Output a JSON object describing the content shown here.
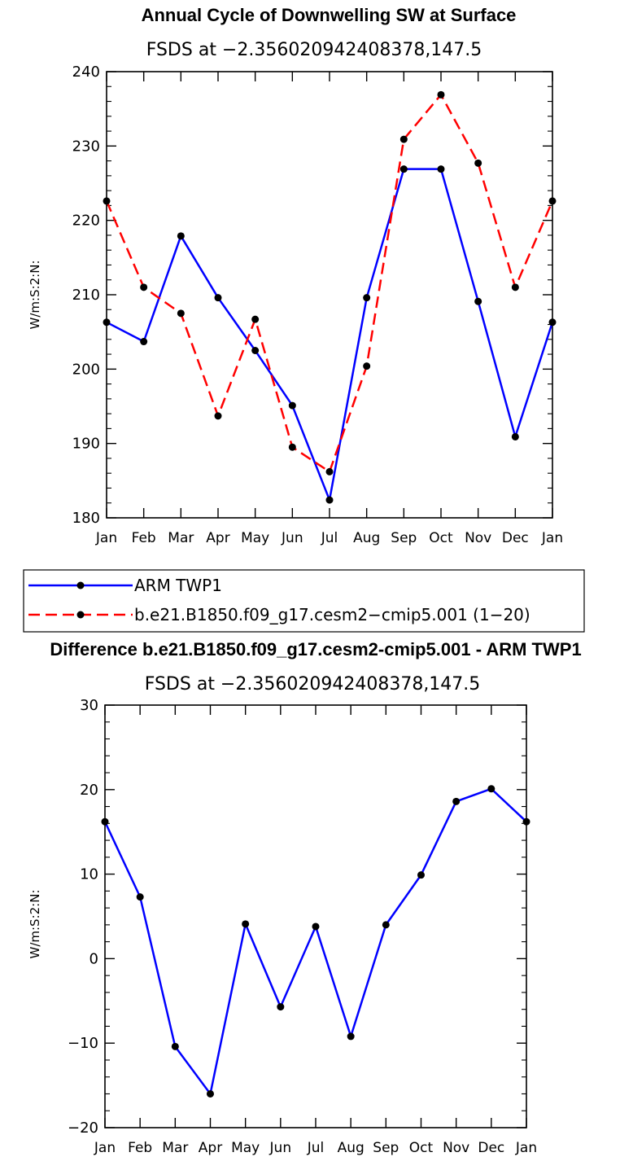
{
  "chart_data": [
    {
      "type": "line",
      "title": "Annual Cycle of Downwelling SW at Surface",
      "subtitle": "FSDS at −2.356020942408378,147.5",
      "ylabel": "W/m:S:2:N:",
      "xlabel": "",
      "categories": [
        "Jan",
        "Feb",
        "Mar",
        "Apr",
        "May",
        "Jun",
        "Jul",
        "Aug",
        "Sep",
        "Oct",
        "Nov",
        "Dec",
        "Jan"
      ],
      "ylim": [
        180,
        240
      ],
      "yticks": [
        "180",
        "190",
        "200",
        "210",
        "220",
        "230",
        "240"
      ],
      "series": [
        {
          "name": "ARM TWP1",
          "color": "#0000ff",
          "style": "solid",
          "values": [
            206.3,
            203.7,
            217.9,
            209.6,
            202.5,
            195.1,
            182.4,
            209.6,
            226.9,
            226.9,
            209.1,
            190.9,
            206.3
          ]
        },
        {
          "name": "b.e21.B1850.f09_g17.cesm2−cmip5.001 (1−20)",
          "color": "#ff0000",
          "style": "dashed",
          "values": [
            222.6,
            211.0,
            207.5,
            193.7,
            206.7,
            189.5,
            186.2,
            200.4,
            230.9,
            236.9,
            227.7,
            211.0,
            222.6
          ]
        }
      ],
      "legend": [
        "ARM TWP1",
        "b.e21.B1850.f09_g17.cesm2−cmip5.001 (1−20)"
      ]
    },
    {
      "type": "line",
      "title": "Difference b.e21.B1850.f09_g17.cesm2-cmip5.001 - ARM TWP1",
      "subtitle": "FSDS at −2.356020942408378,147.5",
      "ylabel": "W/m:S:2:N:",
      "xlabel": "",
      "categories": [
        "Jan",
        "Feb",
        "Mar",
        "Apr",
        "May",
        "Jun",
        "Jul",
        "Aug",
        "Sep",
        "Oct",
        "Nov",
        "Dec",
        "Jan"
      ],
      "ylim": [
        -20,
        30
      ],
      "yticks": [
        "−20",
        "−10",
        "0",
        "10",
        "20",
        "30"
      ],
      "series": [
        {
          "name": "Difference",
          "color": "#0000ff",
          "style": "solid",
          "values": [
            16.2,
            7.3,
            -10.4,
            -16.0,
            4.1,
            -5.7,
            3.8,
            -9.2,
            4.0,
            9.9,
            18.6,
            20.1,
            16.2
          ]
        }
      ]
    }
  ]
}
